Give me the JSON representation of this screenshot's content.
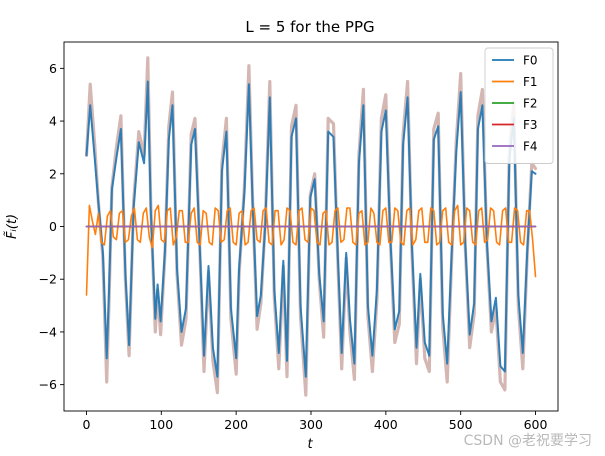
{
  "chart_data": {
    "type": "line",
    "title": "L = 5 for the PPG",
    "xlabel": "t",
    "ylabel": "F̃ᵢ(t)",
    "xlim": [
      -30,
      630
    ],
    "ylim": [
      -7,
      7
    ],
    "xticks": [
      0,
      100,
      200,
      300,
      400,
      500,
      600
    ],
    "yticks": [
      -6,
      -4,
      -2,
      0,
      2,
      4,
      6
    ],
    "grid": false,
    "legend_position": "top-right",
    "original_signal": {
      "color": "#d4b7b3",
      "x": [
        0,
        5,
        11,
        16,
        22,
        27,
        30,
        34,
        40,
        46,
        52,
        57,
        63,
        70,
        77,
        82,
        86,
        92,
        95,
        99,
        105,
        110,
        115,
        121,
        127,
        133,
        140,
        145,
        151,
        157,
        163,
        169,
        175,
        181,
        187,
        193,
        200,
        204,
        211,
        217,
        222,
        228,
        233,
        239,
        245,
        251,
        257,
        263,
        268,
        274,
        280,
        286,
        293,
        299,
        305,
        311,
        317,
        323,
        330,
        336,
        341,
        347,
        352,
        358,
        364,
        370,
        376,
        382,
        388,
        394,
        400,
        406,
        412,
        418,
        423,
        429,
        435,
        441,
        446,
        452,
        458,
        464,
        470,
        476,
        482,
        488,
        494,
        500,
        506,
        512,
        518,
        523,
        529,
        535,
        541,
        547,
        553,
        559,
        565,
        571,
        577,
        583,
        589,
        595,
        600
      ],
      "y": [
        2.7,
        5.4,
        3.1,
        0.9,
        -1.2,
        -5.9,
        -3.0,
        1.5,
        3.0,
        4.2,
        -2.0,
        -4.9,
        0.9,
        3.6,
        2.7,
        6.4,
        0.8,
        -4.0,
        -2.4,
        -4.1,
        -1.0,
        3.8,
        5.1,
        -1.8,
        -4.5,
        -3.5,
        3.5,
        4.1,
        -0.5,
        -5.5,
        -1.7,
        -5.1,
        -6.3,
        2.4,
        4.1,
        -3.5,
        -5.6,
        -1.8,
        1.5,
        6.1,
        1.0,
        -3.9,
        -2.9,
        0.2,
        5.5,
        -2.7,
        -5.4,
        -1.5,
        -5.7,
        3.8,
        4.6,
        -3.4,
        -6.4,
        1.2,
        2.0,
        -2.0,
        -4.2,
        4.1,
        3.9,
        -1.4,
        -5.4,
        -1.2,
        -4.0,
        -5.8,
        2.7,
        5.2,
        -3.4,
        -5.5,
        -2.8,
        4.1,
        5.0,
        -0.5,
        -4.4,
        -3.7,
        3.5,
        5.5,
        -1.0,
        -5.2,
        -2.0,
        -5.0,
        -5.5,
        3.7,
        4.3,
        -3.8,
        -5.9,
        -1.2,
        3.2,
        5.8,
        -0.7,
        -4.6,
        -3.3,
        4.2,
        5.2,
        -0.7,
        -4.0,
        -3.1,
        -5.9,
        -6.2,
        2.9,
        4.7,
        -3.0,
        -5.4,
        -1.0,
        2.4,
        2.2
      ]
    },
    "series": [
      {
        "name": "F0",
        "color": "#1f77b4",
        "x": [
          0,
          5,
          11,
          16,
          22,
          27,
          30,
          34,
          40,
          46,
          52,
          57,
          63,
          70,
          77,
          82,
          86,
          92,
          95,
          99,
          105,
          110,
          115,
          121,
          127,
          133,
          140,
          145,
          151,
          157,
          163,
          169,
          175,
          181,
          187,
          193,
          200,
          204,
          211,
          217,
          222,
          228,
          233,
          239,
          245,
          251,
          257,
          263,
          268,
          274,
          280,
          286,
          293,
          299,
          305,
          311,
          317,
          323,
          330,
          336,
          341,
          347,
          352,
          358,
          364,
          370,
          376,
          382,
          388,
          394,
          400,
          406,
          412,
          418,
          423,
          429,
          435,
          441,
          446,
          452,
          458,
          464,
          470,
          476,
          482,
          488,
          494,
          500,
          506,
          512,
          518,
          523,
          529,
          535,
          541,
          547,
          553,
          559,
          565,
          571,
          577,
          583,
          589,
          595,
          600
        ],
        "values": [
          2.7,
          4.6,
          2.6,
          0.9,
          -1.0,
          -5.0,
          -2.6,
          1.4,
          2.6,
          3.7,
          -1.8,
          -4.5,
          0.7,
          3.2,
          2.4,
          5.5,
          0.6,
          -3.5,
          -2.2,
          -3.6,
          -0.9,
          3.3,
          4.6,
          -1.6,
          -4.0,
          -3.1,
          3.1,
          3.7,
          -0.5,
          -4.9,
          -1.5,
          -4.6,
          -5.7,
          2.1,
          3.6,
          -3.1,
          -5.0,
          -1.6,
          1.3,
          5.4,
          0.9,
          -3.4,
          -2.6,
          0.1,
          4.9,
          -2.4,
          -4.8,
          -1.3,
          -5.1,
          3.4,
          4.1,
          -3.0,
          -5.7,
          1.1,
          1.8,
          -1.8,
          -3.6,
          3.6,
          3.4,
          -1.2,
          -4.8,
          -1.0,
          -3.5,
          -5.2,
          2.4,
          4.6,
          -3.0,
          -4.9,
          -2.4,
          3.6,
          4.4,
          -0.4,
          -3.9,
          -3.2,
          3.1,
          4.9,
          -0.8,
          -4.6,
          -1.8,
          -4.4,
          -4.9,
          3.3,
          3.8,
          -3.3,
          -5.2,
          -1.0,
          2.8,
          5.1,
          -0.6,
          -4.1,
          -2.9,
          3.7,
          4.6,
          -0.6,
          -3.6,
          -2.7,
          -5.3,
          -5.5,
          2.5,
          4.1,
          -2.6,
          -4.8,
          -0.9,
          2.1,
          2.0
        ]
      },
      {
        "name": "F1",
        "color": "#ff7f0e",
        "x": [
          0,
          4,
          8,
          12,
          16,
          20,
          24,
          28,
          32,
          36,
          40,
          44,
          48,
          52,
          56,
          60,
          64,
          68,
          72,
          76,
          80,
          84,
          88,
          92,
          96,
          100,
          104,
          108,
          112,
          116,
          120,
          124,
          128,
          132,
          136,
          140,
          144,
          148,
          152,
          156,
          160,
          164,
          168,
          172,
          176,
          180,
          184,
          188,
          192,
          196,
          200,
          204,
          208,
          212,
          216,
          220,
          224,
          228,
          232,
          236,
          240,
          244,
          248,
          252,
          256,
          260,
          264,
          268,
          272,
          276,
          280,
          284,
          288,
          292,
          296,
          300,
          304,
          308,
          312,
          316,
          320,
          324,
          328,
          332,
          336,
          340,
          344,
          348,
          352,
          356,
          360,
          364,
          368,
          372,
          376,
          380,
          384,
          388,
          392,
          396,
          400,
          404,
          408,
          412,
          416,
          420,
          424,
          428,
          432,
          436,
          440,
          444,
          448,
          452,
          456,
          460,
          464,
          468,
          472,
          476,
          480,
          484,
          488,
          492,
          496,
          500,
          504,
          508,
          512,
          516,
          520,
          524,
          528,
          532,
          536,
          540,
          544,
          548,
          552,
          556,
          560,
          564,
          568,
          572,
          576,
          580,
          584,
          588,
          592,
          596,
          600
        ],
        "values": [
          -2.6,
          0.8,
          0.2,
          -0.3,
          0.5,
          -0.6,
          -0.7,
          0.4,
          0.6,
          -0.4,
          -0.5,
          0.5,
          0.6,
          -0.6,
          -0.5,
          0.4,
          0.7,
          -0.5,
          -0.6,
          0.5,
          0.7,
          -0.4,
          -0.8,
          0.6,
          0.8,
          -0.5,
          -0.6,
          0.6,
          0.7,
          -0.7,
          -0.4,
          0.6,
          0.6,
          -0.6,
          -0.6,
          0.5,
          0.7,
          -0.6,
          -0.7,
          0.6,
          0.5,
          -0.6,
          -0.7,
          0.7,
          0.6,
          -0.6,
          -0.5,
          0.6,
          0.7,
          -0.6,
          -0.7,
          0.5,
          0.6,
          -0.7,
          -0.6,
          0.6,
          0.7,
          -0.5,
          -0.6,
          0.6,
          0.7,
          -0.6,
          -0.7,
          0.6,
          0.6,
          -0.7,
          -0.5,
          0.7,
          0.6,
          -0.6,
          -0.7,
          0.6,
          0.7,
          -0.5,
          -0.6,
          0.7,
          0.6,
          -0.6,
          -0.7,
          0.5,
          0.6,
          -0.7,
          -0.6,
          0.6,
          0.7,
          -0.6,
          -0.5,
          0.7,
          0.7,
          -0.6,
          -0.7,
          0.5,
          0.6,
          -0.7,
          -0.6,
          0.7,
          0.5,
          -0.6,
          -0.7,
          0.6,
          0.7,
          -0.6,
          -0.6,
          0.7,
          0.6,
          -0.6,
          -0.7,
          0.6,
          0.7,
          -0.7,
          -0.5,
          0.6,
          0.7,
          -0.6,
          -0.6,
          0.7,
          0.6,
          -0.7,
          -0.6,
          0.6,
          0.7,
          -0.6,
          -0.7,
          0.6,
          0.8,
          -0.7,
          -0.6,
          0.7,
          0.6,
          -0.6,
          -0.7,
          0.6,
          0.7,
          -0.6,
          -0.5,
          0.7,
          0.6,
          -0.6,
          -0.7,
          0.6,
          0.7,
          -0.6,
          -0.6,
          0.7,
          0.6,
          -0.6,
          -0.7,
          0.6,
          0.6,
          -0.5,
          -1.9
        ]
      },
      {
        "name": "F2",
        "color": "#2ca02c",
        "x": [
          0,
          600
        ],
        "values": [
          0.0,
          0.0
        ]
      },
      {
        "name": "F3",
        "color": "#d62728",
        "x": [
          0,
          600
        ],
        "values": [
          0.0,
          0.0
        ]
      },
      {
        "name": "F4",
        "color": "#9467bd",
        "x": [
          0,
          600
        ],
        "values": [
          0.0,
          0.0
        ]
      }
    ]
  },
  "watermark": "CSDN @老祝要学习"
}
